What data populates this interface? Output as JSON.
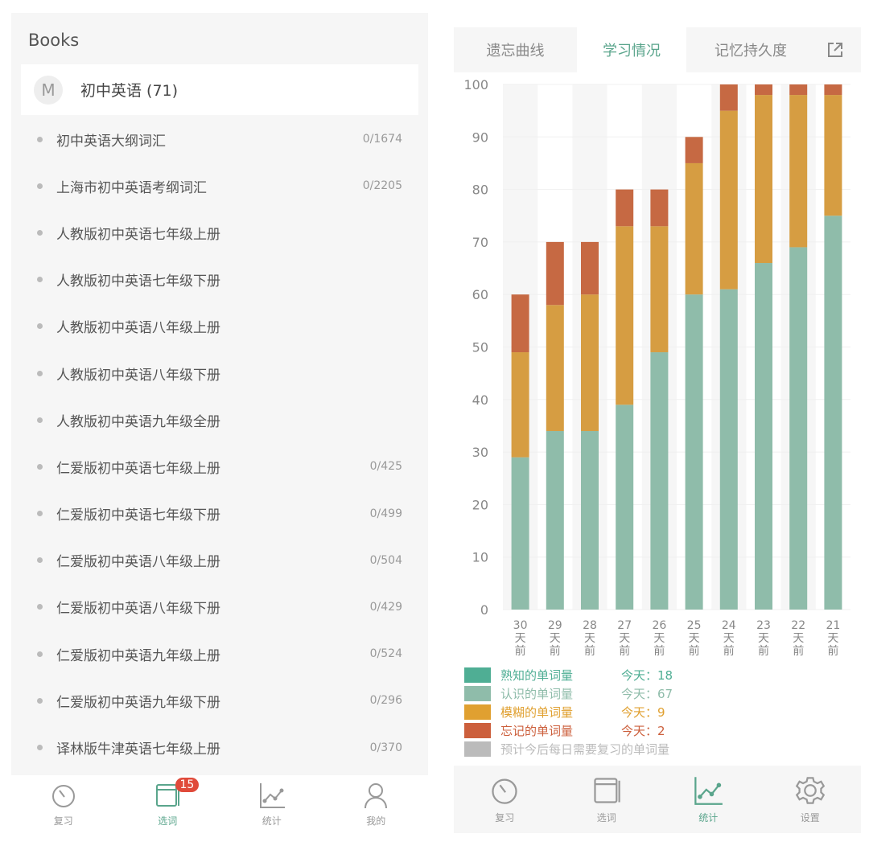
{
  "left": {
    "title": "Books",
    "group": {
      "avatar": "M",
      "name": "初中英语 (71)"
    },
    "books": [
      {
        "name": "初中英语大纲词汇",
        "count": "0/1674"
      },
      {
        "name": "上海市初中英语考纲词汇",
        "count": "0/2205"
      },
      {
        "name": "人教版初中英语七年级上册",
        "count": ""
      },
      {
        "name": "人教版初中英语七年级下册",
        "count": ""
      },
      {
        "name": "人教版初中英语八年级上册",
        "count": ""
      },
      {
        "name": "人教版初中英语八年级下册",
        "count": ""
      },
      {
        "name": "人教版初中英语九年级全册",
        "count": ""
      },
      {
        "name": "仁爱版初中英语七年级上册",
        "count": "0/425"
      },
      {
        "name": "仁爱版初中英语七年级下册",
        "count": "0/499"
      },
      {
        "name": "仁爱版初中英语八年级上册",
        "count": "0/504"
      },
      {
        "name": "仁爱版初中英语八年级下册",
        "count": "0/429"
      },
      {
        "name": "仁爱版初中英语九年级上册",
        "count": "0/524"
      },
      {
        "name": "仁爱版初中英语九年级下册",
        "count": "0/296"
      },
      {
        "name": "译林版牛津英语七年级上册",
        "count": "0/370"
      }
    ],
    "tabs": [
      {
        "label": "复习",
        "icon": "timer-icon"
      },
      {
        "label": "选词",
        "icon": "book-icon",
        "badge": "15",
        "active": true
      },
      {
        "label": "统计",
        "icon": "chart-icon"
      },
      {
        "label": "我的",
        "icon": "person-icon"
      }
    ]
  },
  "right": {
    "tabs": [
      {
        "label": "遗忘曲线"
      },
      {
        "label": "学习情况",
        "active": true
      },
      {
        "label": "记忆持久度"
      }
    ],
    "share_icon": "share-icon",
    "legend": [
      {
        "name": "熟知的单词量",
        "today": "今天：18",
        "color": "#4fae94"
      },
      {
        "name": "认识的单词量",
        "today": "今天：67",
        "color": "#8fbcaa"
      },
      {
        "name": "模糊的单词量",
        "today": "今天：9",
        "color": "#e0a030"
      },
      {
        "name": "忘记的单词量",
        "today": "今天：2",
        "color": "#cc5f3c"
      },
      {
        "name": "预计今后每日需要复习的单词量",
        "today": "",
        "color": "#bbbbbb"
      }
    ],
    "tabs_bottom": [
      {
        "label": "复习",
        "icon": "timer-icon"
      },
      {
        "label": "选词",
        "icon": "book-icon"
      },
      {
        "label": "统计",
        "icon": "chart-icon",
        "active": true
      },
      {
        "label": "设置",
        "icon": "gear-icon"
      }
    ]
  },
  "colors": {
    "accent": "#5aa58c",
    "badge": "#e04a3a"
  },
  "chart_data": {
    "type": "bar",
    "stacked": true,
    "categories": [
      "30\n天\n前",
      "29\n天\n前",
      "28\n天\n前",
      "27\n天\n前",
      "26\n天\n前",
      "25\n天\n前",
      "24\n天\n前",
      "23\n天\n前",
      "22\n天\n前",
      "21\n天\n前"
    ],
    "ylim": [
      0,
      100
    ],
    "yticks": [
      0,
      10,
      20,
      30,
      40,
      50,
      60,
      70,
      80,
      90,
      100
    ],
    "series": [
      {
        "name": "认识的单词量",
        "color": "#8fbcaa",
        "values": [
          29,
          34,
          34,
          39,
          49,
          60,
          61,
          66,
          69,
          75
        ]
      },
      {
        "name": "模糊的单词量",
        "color": "#d69d42",
        "values": [
          20,
          24,
          26,
          34,
          24,
          25,
          34,
          32,
          29,
          23
        ]
      },
      {
        "name": "忘记的单词量",
        "color": "#c66943",
        "values": [
          11,
          12,
          10,
          7,
          7,
          5,
          5,
          2,
          2,
          2
        ]
      }
    ]
  }
}
